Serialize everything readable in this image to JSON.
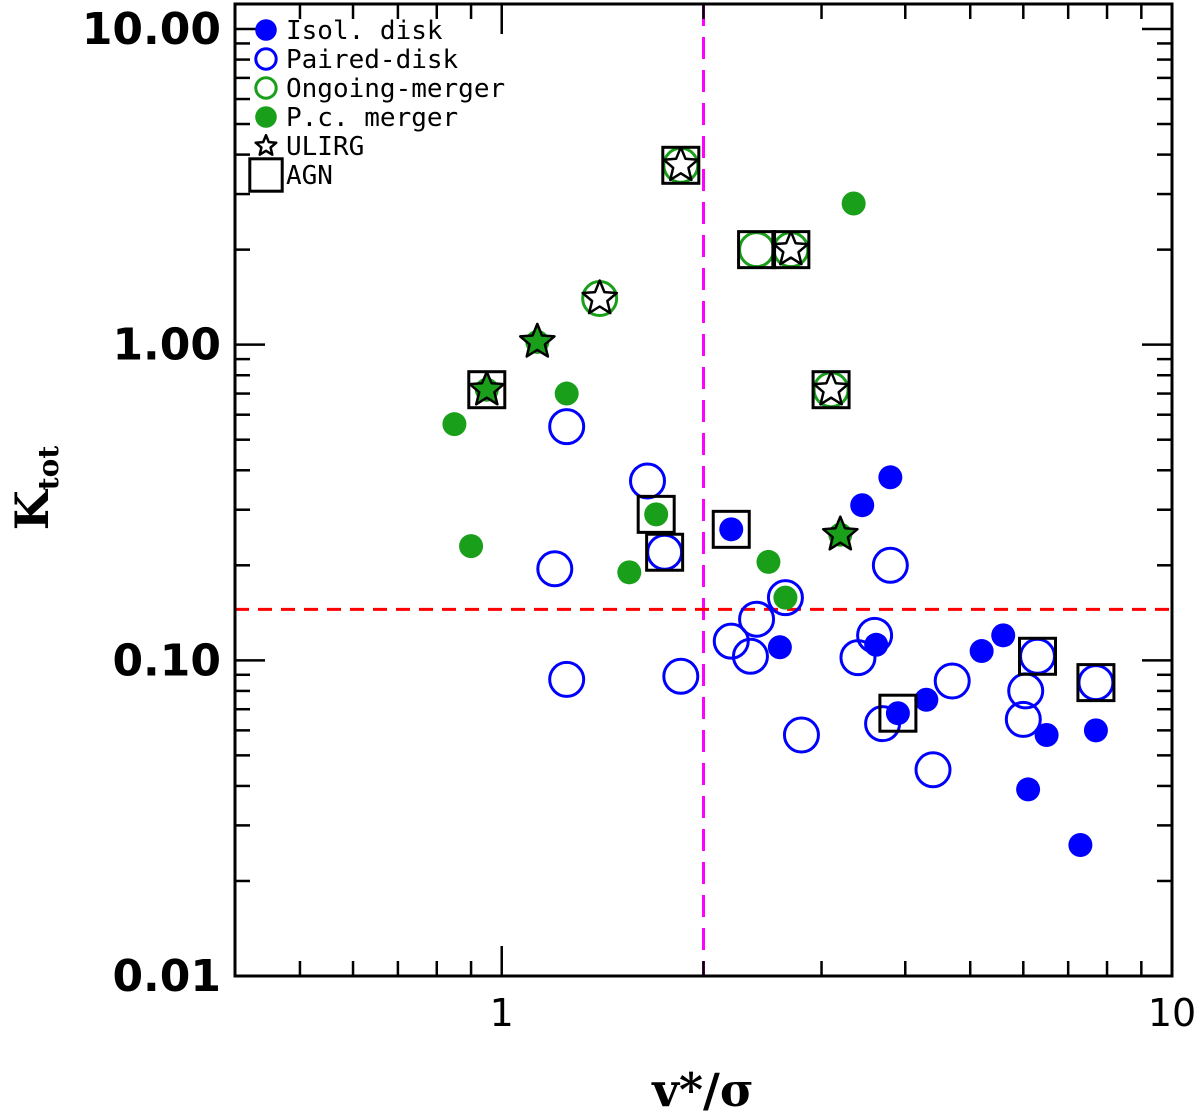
{
  "chart_data": {
    "type": "scatter",
    "xscale": "log",
    "yscale": "log",
    "xlim": [
      0.4,
      10
    ],
    "ylim": [
      0.01,
      12
    ],
    "xlabel": "v*/σ",
    "ylabel": "K",
    "ylabel_sub": "tot",
    "x_ticks": [
      {
        "value": 1,
        "label": "1"
      },
      {
        "value": 10,
        "label": "10"
      }
    ],
    "y_ticks": [
      {
        "value": 0.01,
        "label": "0.01"
      },
      {
        "value": 0.1,
        "label": "0.10"
      },
      {
        "value": 1,
        "label": "1.00"
      },
      {
        "value": 10,
        "label": "10.00"
      }
    ],
    "reference_lines": [
      {
        "orientation": "vertical",
        "value": 2.0,
        "color": "#ff00ff",
        "style": "long-dash"
      },
      {
        "orientation": "horizontal",
        "value": 0.145,
        "color": "#ff0000",
        "style": "dash"
      }
    ],
    "legend": [
      {
        "label": "Isol. disk",
        "marker": "filled-circle",
        "color": "#0000ff"
      },
      {
        "label": "Paired-disk",
        "marker": "open-circle",
        "color": "#0000ff"
      },
      {
        "label": "Ongoing-merger",
        "marker": "open-circle",
        "color": "#1a9f1a"
      },
      {
        "label": "P.c. merger",
        "marker": "filled-circle",
        "color": "#1a9f1a"
      },
      {
        "label": "ULIRG",
        "marker": "star",
        "color": "#000000"
      },
      {
        "label": "AGN",
        "marker": "square",
        "color": "#000000"
      }
    ],
    "series": [
      {
        "name": "Isol. disk",
        "marker": "filled-circle",
        "color": "#0000ff",
        "points": [
          {
            "x": 2.2,
            "y": 0.26
          },
          {
            "x": 2.6,
            "y": 0.11
          },
          {
            "x": 3.45,
            "y": 0.31
          },
          {
            "x": 3.8,
            "y": 0.38
          },
          {
            "x": 3.62,
            "y": 0.112
          },
          {
            "x": 3.9,
            "y": 0.068
          },
          {
            "x": 4.3,
            "y": 0.075
          },
          {
            "x": 5.2,
            "y": 0.107
          },
          {
            "x": 5.6,
            "y": 0.12
          },
          {
            "x": 6.1,
            "y": 0.039
          },
          {
            "x": 6.5,
            "y": 0.058
          },
          {
            "x": 7.7,
            "y": 0.06
          },
          {
            "x": 7.3,
            "y": 0.026
          }
        ]
      },
      {
        "name": "Paired-disk",
        "marker": "open-circle",
        "color": "#0000ff",
        "points": [
          {
            "x": 1.25,
            "y": 0.55
          },
          {
            "x": 1.2,
            "y": 0.195
          },
          {
            "x": 1.25,
            "y": 0.087
          },
          {
            "x": 1.65,
            "y": 0.37
          },
          {
            "x": 1.75,
            "y": 0.22
          },
          {
            "x": 1.85,
            "y": 0.089
          },
          {
            "x": 2.2,
            "y": 0.115
          },
          {
            "x": 2.35,
            "y": 0.103
          },
          {
            "x": 2.4,
            "y": 0.135
          },
          {
            "x": 2.65,
            "y": 0.158
          },
          {
            "x": 2.8,
            "y": 0.058
          },
          {
            "x": 3.4,
            "y": 0.102
          },
          {
            "x": 3.6,
            "y": 0.12
          },
          {
            "x": 3.7,
            "y": 0.063
          },
          {
            "x": 3.8,
            "y": 0.2
          },
          {
            "x": 4.4,
            "y": 0.045
          },
          {
            "x": 4.7,
            "y": 0.086
          },
          {
            "x": 6.0,
            "y": 0.065
          },
          {
            "x": 6.05,
            "y": 0.08
          },
          {
            "x": 6.3,
            "y": 0.103
          },
          {
            "x": 7.7,
            "y": 0.085
          }
        ]
      },
      {
        "name": "Ongoing-merger",
        "marker": "open-circle",
        "color": "#1a9f1a",
        "points": [
          {
            "x": 1.4,
            "y": 1.4
          },
          {
            "x": 1.85,
            "y": 3.7
          },
          {
            "x": 2.4,
            "y": 2.0
          },
          {
            "x": 2.7,
            "y": 2.0
          },
          {
            "x": 3.1,
            "y": 0.72
          }
        ]
      },
      {
        "name": "P.c. merger",
        "marker": "filled-circle",
        "color": "#1a9f1a",
        "points": [
          {
            "x": 0.85,
            "y": 0.56
          },
          {
            "x": 0.9,
            "y": 0.23
          },
          {
            "x": 0.95,
            "y": 0.72
          },
          {
            "x": 1.13,
            "y": 1.02
          },
          {
            "x": 1.25,
            "y": 0.7
          },
          {
            "x": 1.55,
            "y": 0.19
          },
          {
            "x": 1.7,
            "y": 0.29
          },
          {
            "x": 2.5,
            "y": 0.205
          },
          {
            "x": 2.65,
            "y": 0.158
          },
          {
            "x": 3.2,
            "y": 0.25
          },
          {
            "x": 3.35,
            "y": 2.8
          }
        ]
      },
      {
        "name": "ULIRG",
        "marker": "star",
        "color": "#000000",
        "points": [
          {
            "x": 0.95,
            "y": 0.72,
            "fill": "#1a9f1a"
          },
          {
            "x": 1.13,
            "y": 1.02,
            "fill": "#1a9f1a"
          },
          {
            "x": 1.4,
            "y": 1.4,
            "fill": "#ffffff"
          },
          {
            "x": 1.85,
            "y": 3.7,
            "fill": "#ffffff"
          },
          {
            "x": 2.7,
            "y": 2.0,
            "fill": "#ffffff"
          },
          {
            "x": 3.1,
            "y": 0.72,
            "fill": "#ffffff"
          },
          {
            "x": 3.2,
            "y": 0.25,
            "fill": "#1a9f1a"
          }
        ]
      },
      {
        "name": "AGN",
        "marker": "square",
        "color": "#000000",
        "points": [
          {
            "x": 0.95,
            "y": 0.72
          },
          {
            "x": 1.85,
            "y": 3.7
          },
          {
            "x": 1.7,
            "y": 0.29
          },
          {
            "x": 1.75,
            "y": 0.22
          },
          {
            "x": 2.2,
            "y": 0.26
          },
          {
            "x": 2.4,
            "y": 2.0
          },
          {
            "x": 2.7,
            "y": 2.0
          },
          {
            "x": 3.1,
            "y": 0.72
          },
          {
            "x": 3.9,
            "y": 0.068
          },
          {
            "x": 6.3,
            "y": 0.103
          },
          {
            "x": 7.7,
            "y": 0.085
          }
        ]
      }
    ]
  }
}
